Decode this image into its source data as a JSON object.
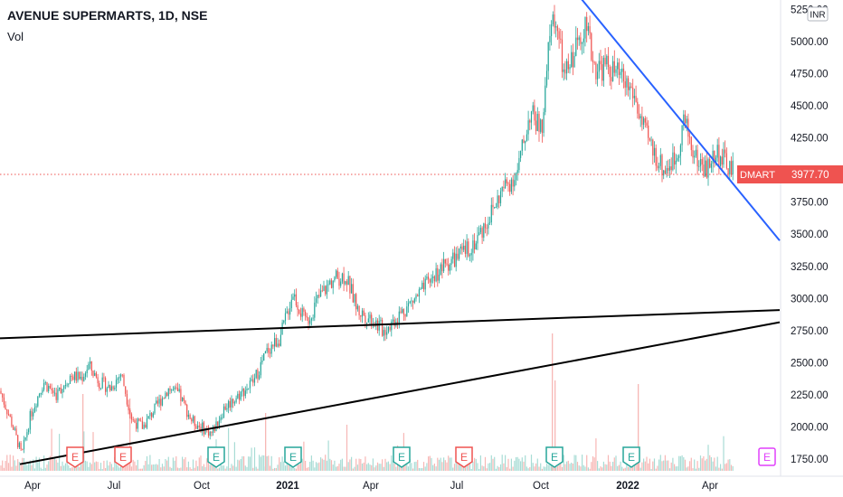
{
  "header": {
    "title": "AVENUE SUPERMARTS, 1D, NSE",
    "indicator": "Vol",
    "currency": "INR"
  },
  "price_label": {
    "symbol": "DMART",
    "value": "3977.70",
    "color": "#ef5350"
  },
  "colors": {
    "up": "#26a69a",
    "down": "#ef5350",
    "trend_blue": "#2962ff",
    "channel": "#000000",
    "dividend_badge": "#e040fb"
  },
  "chart_data": {
    "type": "candlestick",
    "symbol": "AVENUE SUPERMARTS",
    "interval": "1D",
    "exchange": "NSE",
    "last_price": 3977.7,
    "y_ticks": [
      "5250.00",
      "5000.00",
      "4750.00",
      "4500.00",
      "4250.00",
      "3750.00",
      "3500.00",
      "3250.00",
      "3000.00",
      "2750.00",
      "2500.00",
      "2250.00",
      "2000.00",
      "1750.00"
    ],
    "x_ticks": [
      {
        "label": "Apr",
        "bold": false
      },
      {
        "label": "Jul",
        "bold": false
      },
      {
        "label": "Oct",
        "bold": false
      },
      {
        "label": "2021",
        "bold": true
      },
      {
        "label": "Apr",
        "bold": false
      },
      {
        "label": "Jul",
        "bold": false
      },
      {
        "label": "Oct",
        "bold": false
      },
      {
        "label": "2022",
        "bold": true
      },
      {
        "label": "Apr",
        "bold": false
      }
    ],
    "events": [
      {
        "label": "E",
        "kind": "earnings",
        "sentiment": "negative"
      },
      {
        "label": "E",
        "kind": "earnings",
        "sentiment": "negative"
      },
      {
        "label": "E",
        "kind": "earnings",
        "sentiment": "positive"
      },
      {
        "label": "E",
        "kind": "earnings",
        "sentiment": "positive"
      },
      {
        "label": "E",
        "kind": "earnings",
        "sentiment": "positive"
      },
      {
        "label": "E",
        "kind": "earnings",
        "sentiment": "negative"
      },
      {
        "label": "E",
        "kind": "earnings",
        "sentiment": "positive"
      },
      {
        "label": "E",
        "kind": "earnings",
        "sentiment": "positive"
      },
      {
        "label": "E",
        "kind": "upcoming",
        "sentiment": "neutral"
      }
    ],
    "price_path": [
      [
        0,
        2280
      ],
      [
        12,
        2050
      ],
      [
        24,
        1780
      ],
      [
        34,
        2100
      ],
      [
        48,
        2350
      ],
      [
        62,
        2250
      ],
      [
        78,
        2400
      ],
      [
        90,
        2380
      ],
      [
        98,
        2480
      ],
      [
        110,
        2350
      ],
      [
        122,
        2300
      ],
      [
        134,
        2420
      ],
      [
        146,
        2050
      ],
      [
        158,
        2000
      ],
      [
        172,
        2150
      ],
      [
        186,
        2300
      ],
      [
        198,
        2250
      ],
      [
        212,
        2050
      ],
      [
        222,
        2000
      ],
      [
        234,
        1950
      ],
      [
        248,
        2150
      ],
      [
        264,
        2250
      ],
      [
        280,
        2350
      ],
      [
        296,
        2600
      ],
      [
        310,
        2700
      ],
      [
        324,
        3050
      ],
      [
        338,
        2800
      ],
      [
        352,
        3000
      ],
      [
        368,
        3150
      ],
      [
        382,
        3180
      ],
      [
        396,
        2900
      ],
      [
        410,
        2850
      ],
      [
        424,
        2750
      ],
      [
        438,
        2850
      ],
      [
        452,
        2950
      ],
      [
        466,
        3050
      ],
      [
        480,
        3180
      ],
      [
        496,
        3280
      ],
      [
        512,
        3350
      ],
      [
        526,
        3450
      ],
      [
        542,
        3650
      ],
      [
        556,
        3850
      ],
      [
        572,
        3980
      ],
      [
        586,
        4450
      ],
      [
        600,
        4300
      ],
      [
        608,
        5100
      ],
      [
        614,
        5200
      ],
      [
        624,
        4700
      ],
      [
        634,
        4900
      ],
      [
        646,
        5150
      ],
      [
        658,
        4800
      ],
      [
        672,
        4800
      ],
      [
        688,
        4700
      ],
      [
        700,
        4600
      ],
      [
        712,
        4300
      ],
      [
        722,
        4150
      ],
      [
        734,
        4000
      ],
      [
        748,
        4100
      ],
      [
        756,
        4400
      ],
      [
        768,
        4100
      ],
      [
        782,
        4000
      ],
      [
        792,
        4150
      ],
      [
        802,
        4050
      ],
      [
        812,
        3978
      ]
    ],
    "trend_lines": [
      {
        "name": "",
        "from": [
          0,
          2690
        ],
        "to": [
          862,
          2910
        ]
      },
      {
        "name": "",
        "from": [
          22,
          1710
        ],
        "to": [
          862,
          2815
        ]
      },
      {
        "name": "",
        "from": [
          643,
          5330
        ],
        "to": [
          862,
          3450
        ]
      }
    ]
  }
}
